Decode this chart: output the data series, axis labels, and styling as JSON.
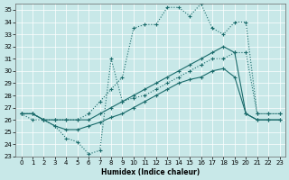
{
  "xlabel": "Humidex (Indice chaleur)",
  "background_color": "#c8e8e8",
  "line_color": "#1a6b6b",
  "grid_color": "#b8d8d8",
  "xlim": [
    -0.5,
    23.5
  ],
  "ylim": [
    23,
    35.5
  ],
  "yticks": [
    23,
    24,
    25,
    26,
    27,
    28,
    29,
    30,
    31,
    32,
    33,
    34,
    35
  ],
  "xticks": [
    0,
    1,
    2,
    3,
    4,
    5,
    6,
    7,
    8,
    9,
    10,
    11,
    12,
    13,
    14,
    15,
    16,
    17,
    18,
    19,
    20,
    21,
    22,
    23
  ],
  "line1_x": [
    0,
    1,
    2,
    3,
    4,
    5,
    6,
    7,
    8,
    9,
    10,
    11,
    12,
    13,
    14,
    15,
    16,
    17,
    18,
    19,
    20,
    21,
    22,
    23
  ],
  "line1_y": [
    26.5,
    26.5,
    26.0,
    26.0,
    26.0,
    26.0,
    26.5,
    27.5,
    28.5,
    29.5,
    33.5,
    33.8,
    33.8,
    35.2,
    35.2,
    34.5,
    35.5,
    33.5,
    33.0,
    34.0,
    34.0,
    26.5,
    26.5,
    26.5
  ],
  "line1_style": "dotted",
  "line2_x": [
    0,
    1,
    2,
    3,
    4,
    5,
    6,
    7,
    8,
    9,
    10,
    11,
    12,
    13,
    14,
    15,
    16,
    17,
    18,
    19,
    20,
    21,
    22,
    23
  ],
  "line2_y": [
    26.5,
    26.5,
    26.0,
    26.0,
    26.0,
    26.0,
    26.0,
    26.5,
    27.0,
    27.5,
    28.0,
    28.5,
    29.0,
    29.5,
    30.0,
    30.5,
    31.0,
    31.5,
    32.0,
    31.5,
    26.5,
    26.0,
    26.0,
    26.0
  ],
  "line2_style": "solid",
  "line3_x": [
    0,
    1,
    2,
    3,
    4,
    5,
    6,
    7,
    8,
    9,
    10,
    11,
    12,
    13,
    14,
    15,
    16,
    17,
    18,
    19,
    20,
    21,
    22,
    23
  ],
  "line3_y": [
    26.5,
    26.5,
    26.0,
    25.5,
    25.2,
    25.2,
    25.5,
    25.8,
    26.2,
    26.5,
    27.0,
    27.5,
    28.0,
    28.5,
    29.0,
    29.3,
    29.5,
    30.0,
    30.2,
    29.5,
    26.5,
    26.0,
    26.0,
    26.0
  ],
  "line3_style": "solid",
  "line4_x": [
    0,
    1,
    2,
    3,
    4,
    5,
    6,
    7,
    8,
    9,
    10,
    11,
    12,
    13,
    14,
    15,
    16,
    17,
    18,
    19,
    20,
    21,
    22,
    23
  ],
  "line4_y": [
    26.5,
    26.0,
    26.0,
    25.5,
    24.5,
    24.2,
    23.2,
    23.5,
    31.0,
    27.5,
    27.8,
    28.0,
    28.5,
    29.0,
    29.5,
    30.0,
    30.5,
    31.0,
    31.0,
    31.5,
    31.5,
    26.5,
    26.5,
    26.5
  ],
  "line4_style": "dotted"
}
